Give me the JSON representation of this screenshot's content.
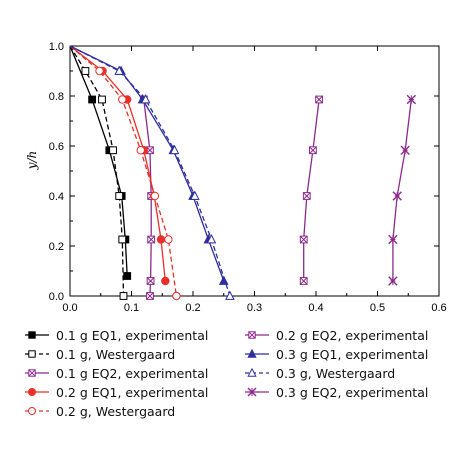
{
  "chart_data": {
    "type": "line",
    "xlabel": "P",
    "xlabel_sub": "max",
    "xlabel_rest": "/ρgh",
    "ylabel": "y/h",
    "xlim": [
      0.0,
      0.6
    ],
    "ylim": [
      0.0,
      1.0
    ],
    "xticks": [
      "0.0",
      "0.1",
      "0.2",
      "0.3",
      "0.4",
      "0.5",
      "0.6"
    ],
    "yticks": [
      "0.0",
      "0.2",
      "0.4",
      "0.6",
      "0.8",
      "1.0"
    ],
    "grid": false,
    "legend_position": "bottom",
    "series": [
      {
        "name": "0.1 g EQ1, experimental",
        "color": "#000000",
        "marker": "square-filled",
        "dash": false,
        "x": [
          0.0,
          0.036,
          0.064,
          0.084,
          0.09,
          0.093
        ],
        "y": [
          1.0,
          0.786,
          0.583,
          0.4,
          0.226,
          0.08
        ]
      },
      {
        "name": "0.1 g, Westergaard",
        "color": "#000000",
        "marker": "square-open",
        "dash": true,
        "x": [
          0.0,
          0.025,
          0.052,
          0.07,
          0.08,
          0.085,
          0.087
        ],
        "y": [
          1.0,
          0.9,
          0.786,
          0.583,
          0.4,
          0.226,
          0.0
        ]
      },
      {
        "name": "0.1 g EQ2, experimental",
        "color": "#8B2A8B",
        "marker": "square-cross",
        "dash": false,
        "x": [
          0.12,
          0.13,
          0.132,
          0.132,
          0.131,
          0.13
        ],
        "y": [
          0.786,
          0.583,
          0.4,
          0.226,
          0.06,
          0.0
        ]
      },
      {
        "name": "0.2 g EQ1, experimental",
        "color": "#E8302A",
        "marker": "circle-filled",
        "dash": false,
        "x": [
          0.0,
          0.053,
          0.093,
          0.12,
          0.137,
          0.148,
          0.155
        ],
        "y": [
          1.0,
          0.9,
          0.786,
          0.583,
          0.4,
          0.226,
          0.06
        ]
      },
      {
        "name": "0.2 g, Westergaard",
        "color": "#E8302A",
        "marker": "circle-open",
        "dash": true,
        "x": [
          0.0,
          0.048,
          0.085,
          0.115,
          0.138,
          0.16,
          0.173
        ],
        "y": [
          1.0,
          0.9,
          0.786,
          0.583,
          0.4,
          0.226,
          0.0
        ]
      },
      {
        "name": "0.2 g EQ2, experimental",
        "color": "#8B2A8B",
        "marker": "square-cross",
        "dash": false,
        "x": [
          0.38,
          0.38,
          0.385,
          0.395,
          0.405
        ],
        "y": [
          0.06,
          0.226,
          0.4,
          0.583,
          0.786
        ]
      },
      {
        "name": "0.3 g EQ1, experimental",
        "color": "#2E2E9E",
        "marker": "triangle-filled",
        "dash": false,
        "x": [
          0.0,
          0.083,
          0.118,
          0.168,
          0.2,
          0.225,
          0.25
        ],
        "y": [
          1.0,
          0.9,
          0.786,
          0.583,
          0.4,
          0.226,
          0.06
        ]
      },
      {
        "name": "0.3 g, Westergaard",
        "color": "#2E2E9E",
        "marker": "triangle-open",
        "dash": true,
        "x": [
          0.0,
          0.08,
          0.123,
          0.17,
          0.203,
          0.23,
          0.26
        ],
        "y": [
          1.0,
          0.9,
          0.786,
          0.583,
          0.4,
          0.226,
          0.0
        ]
      },
      {
        "name": "0.3 g EQ2, experimental",
        "color": "#8B2A8B",
        "marker": "star-cross",
        "dash": false,
        "x": [
          0.525,
          0.525,
          0.532,
          0.545,
          0.555
        ],
        "y": [
          0.06,
          0.226,
          0.4,
          0.583,
          0.786
        ]
      }
    ],
    "legend_order": [
      0,
      1,
      2,
      3,
      4,
      5,
      6,
      7,
      8
    ]
  }
}
